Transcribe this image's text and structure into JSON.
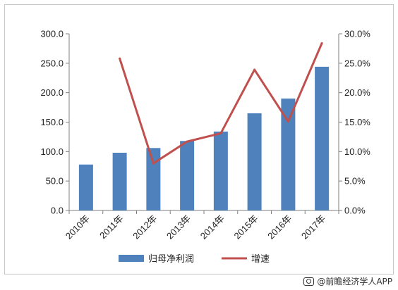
{
  "chart_data": {
    "type": "bar",
    "categories": [
      "2010年",
      "2011年",
      "2012年",
      "2013年",
      "2014年",
      "2015年",
      "2016年",
      "2017年"
    ],
    "series": [
      {
        "name": "归母净利润",
        "type": "bar",
        "axis": "left",
        "color": "#4f81bd",
        "values": [
          78,
          98,
          106,
          118,
          134,
          165,
          190,
          244
        ]
      },
      {
        "name": "增速",
        "type": "line",
        "axis": "right",
        "color": "#c0504d",
        "values": [
          null,
          25.8,
          8.0,
          11.7,
          13.1,
          23.9,
          15.1,
          28.4
        ]
      }
    ],
    "y_left": {
      "min": 0,
      "max": 300,
      "step": 50,
      "tick_labels": [
        "0.0",
        "50.0",
        "100.0",
        "150.0",
        "200.0",
        "250.0",
        "300.0"
      ]
    },
    "y_right": {
      "min": 0,
      "max": 30,
      "step": 5,
      "tick_labels": [
        "0.0%",
        "5.0%",
        "10.0%",
        "15.0%",
        "20.0%",
        "25.0%",
        "30.0%"
      ]
    },
    "grid": false,
    "legend_position": "bottom"
  },
  "credit": {
    "text": "@前瞻经济学人APP",
    "icon": "camera-icon"
  }
}
